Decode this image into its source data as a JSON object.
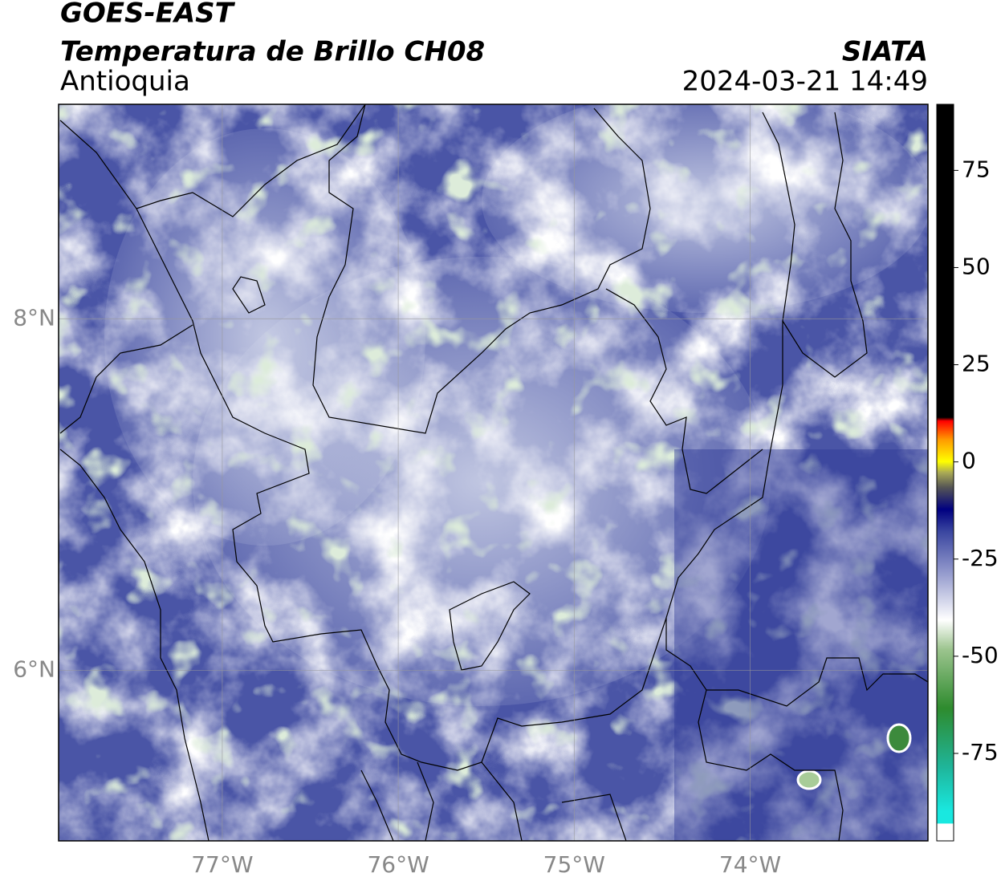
{
  "header": {
    "title": "GOES-EAST",
    "subtitle": "Temperatura de Brillo CH08",
    "region": "Antioquia",
    "source": "SIATA",
    "datetime": "2024-03-21 14:49"
  },
  "map": {
    "xlim": [
      -77.93,
      -72.99
    ],
    "ylim": [
      5.03,
      9.22
    ],
    "xticks": [
      {
        "value": -77,
        "label": "77°W"
      },
      {
        "value": -76,
        "label": "76°W"
      },
      {
        "value": -75,
        "label": "75°W"
      },
      {
        "value": -74,
        "label": "74°W"
      }
    ],
    "yticks": [
      {
        "value": 8,
        "label": "8°N"
      },
      {
        "value": 6,
        "label": "6°N"
      }
    ]
  },
  "colorbar": {
    "lim": [
      -97.5,
      92
    ],
    "ticks": [
      75,
      50,
      25,
      0,
      -25,
      -50,
      -75
    ]
  }
}
